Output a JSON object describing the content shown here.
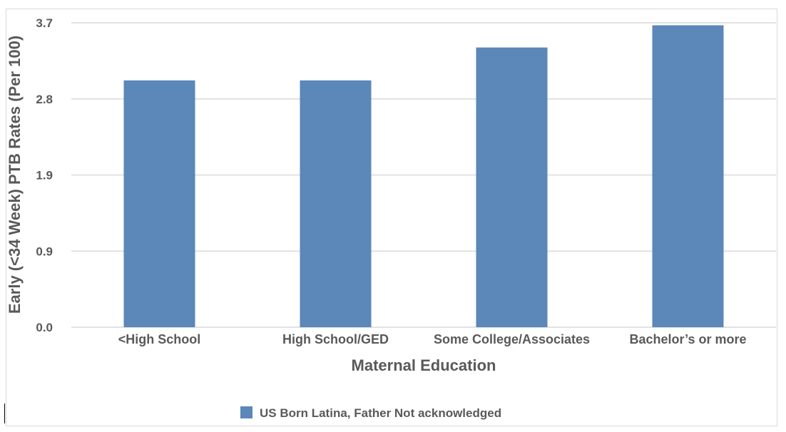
{
  "chart_data": {
    "type": "bar",
    "title": "",
    "xlabel": "Maternal Education",
    "ylabel": "Early (<34 Week) PTB Rates (Per 100)",
    "categories": [
      "<High School",
      "High School/GED",
      "Some College/Associates",
      "Bachelor’s or more"
    ],
    "series": [
      {
        "name": "US Born Latina, Father Not acknowledged",
        "values": [
          3.0,
          3.0,
          3.4,
          3.67
        ],
        "color": "#5b87b9"
      }
    ],
    "yticks": [
      "0.0",
      "0.9",
      "1.9",
      "2.8",
      "3.7"
    ],
    "ytick_values": [
      0.0,
      0.925,
      1.85,
      2.775,
      3.7
    ],
    "ylim": [
      0,
      3.7
    ],
    "grid": true,
    "legend_position": "bottom"
  }
}
